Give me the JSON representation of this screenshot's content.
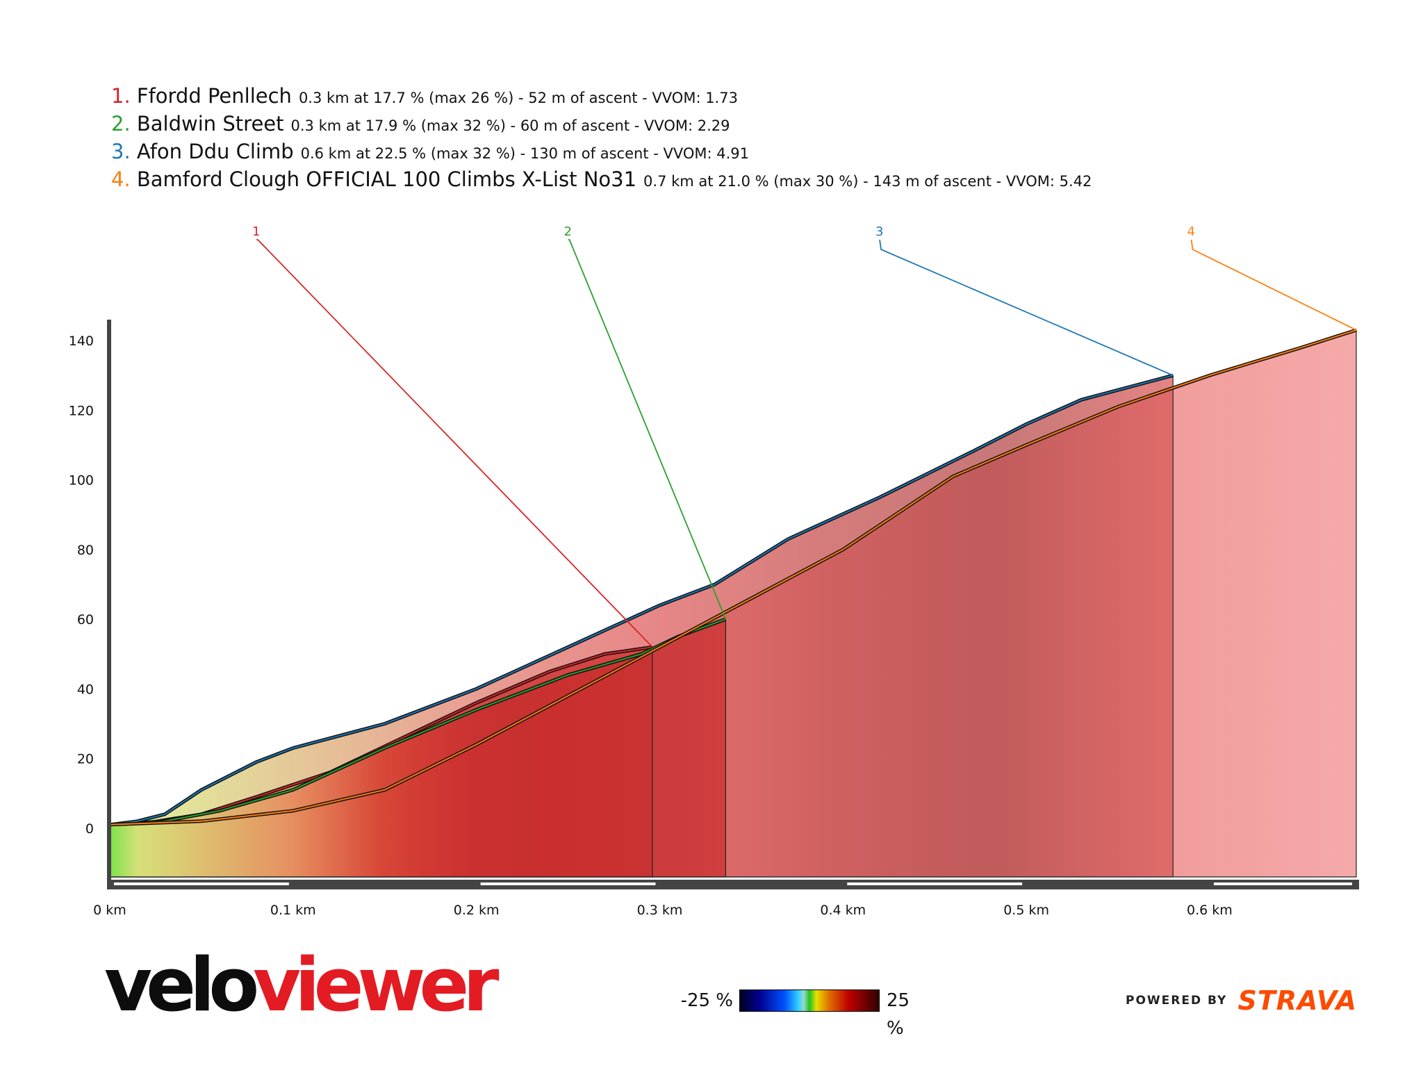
{
  "legend": [
    {
      "num": "1.",
      "name": "Ffordd Penllech",
      "detail": "0.3 km at 17.7 % (max 26 %) - 52 m of ascent - VVOM: 1.73",
      "color": "#d62728"
    },
    {
      "num": "2.",
      "name": "Baldwin Street",
      "detail": "0.3 km at 17.9 % (max 32 %) - 60 m of ascent - VVOM: 2.29",
      "color": "#2ca02c"
    },
    {
      "num": "3.",
      "name": "Afon Ddu Climb",
      "detail": "0.6 km at 22.5 % (max 32 %) - 130 m of ascent - VVOM: 4.91",
      "color": "#1f77b4"
    },
    {
      "num": "4.",
      "name": "Bamford Clough OFFICIAL 100 Climbs X-List No31",
      "detail": "0.7 km at 21.0 % (max 30 %) - 143 m of ascent - VVOM: 5.42",
      "color": "#ff7f0e"
    }
  ],
  "chart_data": {
    "type": "area",
    "xlabel": "",
    "ylabel": "",
    "xlim": [
      0,
      0.68
    ],
    "ylim": [
      -14,
      146
    ],
    "x_ticks": [
      0,
      0.1,
      0.2,
      0.3,
      0.4,
      0.5,
      0.6
    ],
    "x_tick_labels": [
      "0 km",
      "0.1 km",
      "0.2 km",
      "0.3 km",
      "0.4 km",
      "0.5 km",
      "0.6 km"
    ],
    "y_ticks": [
      0,
      20,
      40,
      60,
      80,
      100,
      120,
      140
    ],
    "y_tick_labels": [
      "0",
      "20",
      "40",
      "60",
      "80",
      "100",
      "120",
      "140"
    ],
    "series": [
      {
        "name": "Ffordd Penllech",
        "label": "1",
        "color": "#d62728",
        "x": [
          0,
          0.02,
          0.05,
          0.08,
          0.12,
          0.16,
          0.2,
          0.24,
          0.27,
          0.296
        ],
        "y": [
          1,
          1.5,
          4,
          9,
          16,
          26,
          36,
          45,
          50,
          52
        ]
      },
      {
        "name": "Baldwin Street",
        "label": "2",
        "color": "#2ca02c",
        "x": [
          0,
          0.03,
          0.06,
          0.1,
          0.15,
          0.2,
          0.25,
          0.29,
          0.31,
          0.336
        ],
        "y": [
          1,
          2,
          5,
          11,
          23,
          34,
          44,
          50,
          55,
          60
        ]
      },
      {
        "name": "Afon Ddu Climb",
        "label": "3",
        "color": "#1f77b4",
        "x": [
          0,
          0.015,
          0.03,
          0.05,
          0.08,
          0.1,
          0.15,
          0.2,
          0.25,
          0.3,
          0.33,
          0.37,
          0.42,
          0.47,
          0.5,
          0.53,
          0.58
        ],
        "y": [
          1,
          2,
          4,
          11,
          19,
          23,
          30,
          40,
          52,
          64,
          70,
          83,
          95,
          108,
          116,
          123,
          130
        ]
      },
      {
        "name": "Bamford Clough OFFICIAL 100 Climbs X-List No31",
        "label": "4",
        "color": "#ff7f0e",
        "x": [
          0,
          0.05,
          0.1,
          0.15,
          0.2,
          0.25,
          0.3,
          0.35,
          0.4,
          0.46,
          0.5,
          0.55,
          0.6,
          0.65,
          0.68
        ],
        "y": [
          1,
          2,
          5,
          11,
          24,
          38,
          52,
          66,
          80,
          101,
          110,
          121,
          130,
          138,
          143
        ]
      }
    ],
    "label_anchor_x": [
      0.08,
      0.25,
      0.42,
      0.59
    ],
    "gradient_scale": {
      "min_label": "-25 %",
      "max_label": "25 %"
    }
  },
  "branding": {
    "logo_part1": "velo",
    "logo_part2": "viewer",
    "powered_by": "POWERED BY",
    "strava": "STRAVA"
  }
}
